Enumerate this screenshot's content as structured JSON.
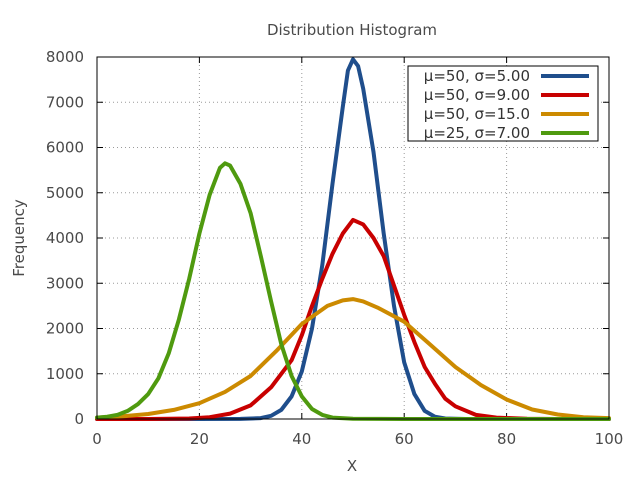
{
  "chart_data": {
    "type": "line",
    "title": "Distribution Histogram",
    "xlabel": "X",
    "ylabel": "Frequency",
    "xlim": [
      0,
      100
    ],
    "ylim": [
      0,
      8000
    ],
    "x_ticks": [
      0,
      20,
      40,
      60,
      80,
      100
    ],
    "y_ticks": [
      0,
      1000,
      2000,
      3000,
      4000,
      5000,
      6000,
      7000,
      8000
    ],
    "grid": true,
    "legend_position": "top-right",
    "series": [
      {
        "name": "μ=50, σ=5.00",
        "color": "#1f4e8c",
        "points": [
          [
            0,
            0
          ],
          [
            20,
            0
          ],
          [
            28,
            2
          ],
          [
            32,
            20
          ],
          [
            34,
            70
          ],
          [
            36,
            200
          ],
          [
            38,
            500
          ],
          [
            40,
            1050
          ],
          [
            42,
            2000
          ],
          [
            44,
            3400
          ],
          [
            46,
            5200
          ],
          [
            48,
            6900
          ],
          [
            49,
            7700
          ],
          [
            50,
            7950
          ],
          [
            51,
            7800
          ],
          [
            52,
            7300
          ],
          [
            54,
            5900
          ],
          [
            56,
            4100
          ],
          [
            58,
            2500
          ],
          [
            60,
            1250
          ],
          [
            62,
            550
          ],
          [
            64,
            180
          ],
          [
            66,
            50
          ],
          [
            68,
            10
          ],
          [
            72,
            0
          ],
          [
            100,
            0
          ]
        ]
      },
      {
        "name": "μ=50, σ=9.00",
        "color": "#c80000",
        "points": [
          [
            0,
            0
          ],
          [
            10,
            0
          ],
          [
            18,
            10
          ],
          [
            22,
            40
          ],
          [
            26,
            120
          ],
          [
            30,
            300
          ],
          [
            34,
            700
          ],
          [
            38,
            1300
          ],
          [
            40,
            1850
          ],
          [
            42,
            2500
          ],
          [
            44,
            3100
          ],
          [
            46,
            3650
          ],
          [
            48,
            4100
          ],
          [
            50,
            4400
          ],
          [
            52,
            4300
          ],
          [
            54,
            4000
          ],
          [
            56,
            3600
          ],
          [
            58,
            2950
          ],
          [
            60,
            2300
          ],
          [
            62,
            1700
          ],
          [
            64,
            1150
          ],
          [
            66,
            780
          ],
          [
            68,
            450
          ],
          [
            70,
            280
          ],
          [
            74,
            90
          ],
          [
            78,
            30
          ],
          [
            84,
            5
          ],
          [
            90,
            0
          ],
          [
            100,
            0
          ]
        ]
      },
      {
        "name": "μ=50, σ=15.0",
        "color": "#cc8a00",
        "points": [
          [
            0,
            30
          ],
          [
            5,
            60
          ],
          [
            10,
            110
          ],
          [
            15,
            200
          ],
          [
            20,
            350
          ],
          [
            25,
            600
          ],
          [
            30,
            950
          ],
          [
            35,
            1500
          ],
          [
            40,
            2100
          ],
          [
            45,
            2500
          ],
          [
            48,
            2620
          ],
          [
            50,
            2650
          ],
          [
            52,
            2600
          ],
          [
            55,
            2450
          ],
          [
            60,
            2150
          ],
          [
            65,
            1650
          ],
          [
            70,
            1150
          ],
          [
            75,
            750
          ],
          [
            80,
            430
          ],
          [
            85,
            210
          ],
          [
            90,
            100
          ],
          [
            95,
            40
          ],
          [
            100,
            20
          ]
        ]
      },
      {
        "name": "μ=25, σ=7.00",
        "color": "#4f9a0f",
        "points": [
          [
            0,
            30
          ],
          [
            2,
            50
          ],
          [
            4,
            90
          ],
          [
            6,
            180
          ],
          [
            8,
            330
          ],
          [
            10,
            550
          ],
          [
            12,
            900
          ],
          [
            14,
            1450
          ],
          [
            16,
            2200
          ],
          [
            18,
            3100
          ],
          [
            20,
            4100
          ],
          [
            22,
            4950
          ],
          [
            24,
            5550
          ],
          [
            25,
            5650
          ],
          [
            26,
            5600
          ],
          [
            28,
            5200
          ],
          [
            30,
            4550
          ],
          [
            32,
            3600
          ],
          [
            34,
            2600
          ],
          [
            36,
            1650
          ],
          [
            38,
            950
          ],
          [
            40,
            500
          ],
          [
            42,
            220
          ],
          [
            44,
            90
          ],
          [
            46,
            30
          ],
          [
            50,
            5
          ],
          [
            60,
            0
          ],
          [
            100,
            0
          ]
        ]
      }
    ]
  }
}
